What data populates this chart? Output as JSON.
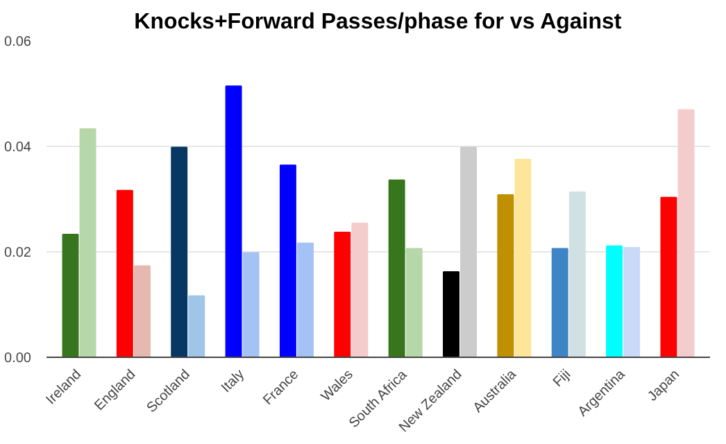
{
  "chart_data": {
    "type": "bar",
    "title": "Knocks+Forward Passes/phase for vs Against",
    "categories": [
      "Ireland",
      "England",
      "Scotland",
      "Italy",
      "France",
      "Wales",
      "South Africa",
      "New Zealand",
      "Australia",
      "Fiji",
      "Argentina",
      "Japan"
    ],
    "series": [
      {
        "colors": [
          "#38761d",
          "#ff0000",
          "#073763",
          "#0000ff",
          "#0000ff",
          "#ff0000",
          "#38761d",
          "#000000",
          "#bf9000",
          "#3d85c6",
          "#00ffff",
          "#ff0000"
        ],
        "values": [
          0.0233,
          0.0316,
          0.0398,
          0.0514,
          0.0364,
          0.0237,
          0.0336,
          0.0162,
          0.0308,
          0.0206,
          0.0211,
          0.0303
        ]
      },
      {
        "colors": [
          "#b6d7a8",
          "#e6b8af",
          "#9fc5e8",
          "#a4c2f4",
          "#a4c2f4",
          "#f4cccc",
          "#b6d7a8",
          "#cccccc",
          "#ffe599",
          "#d0e0e3",
          "#c9daf8",
          "#f4cccc"
        ],
        "values": [
          0.0433,
          0.0173,
          0.0116,
          0.0198,
          0.0216,
          0.0254,
          0.0206,
          0.0398,
          0.0375,
          0.0313,
          0.0208,
          0.0469
        ]
      }
    ],
    "ylim": [
      0,
      0.06
    ],
    "yticks": [
      {
        "value": 0,
        "label": "0.00"
      },
      {
        "value": 0.02,
        "label": "0.02"
      },
      {
        "value": 0.04,
        "label": "0.04"
      },
      {
        "value": 0.06,
        "label": "0.06"
      }
    ],
    "grid": "y"
  }
}
